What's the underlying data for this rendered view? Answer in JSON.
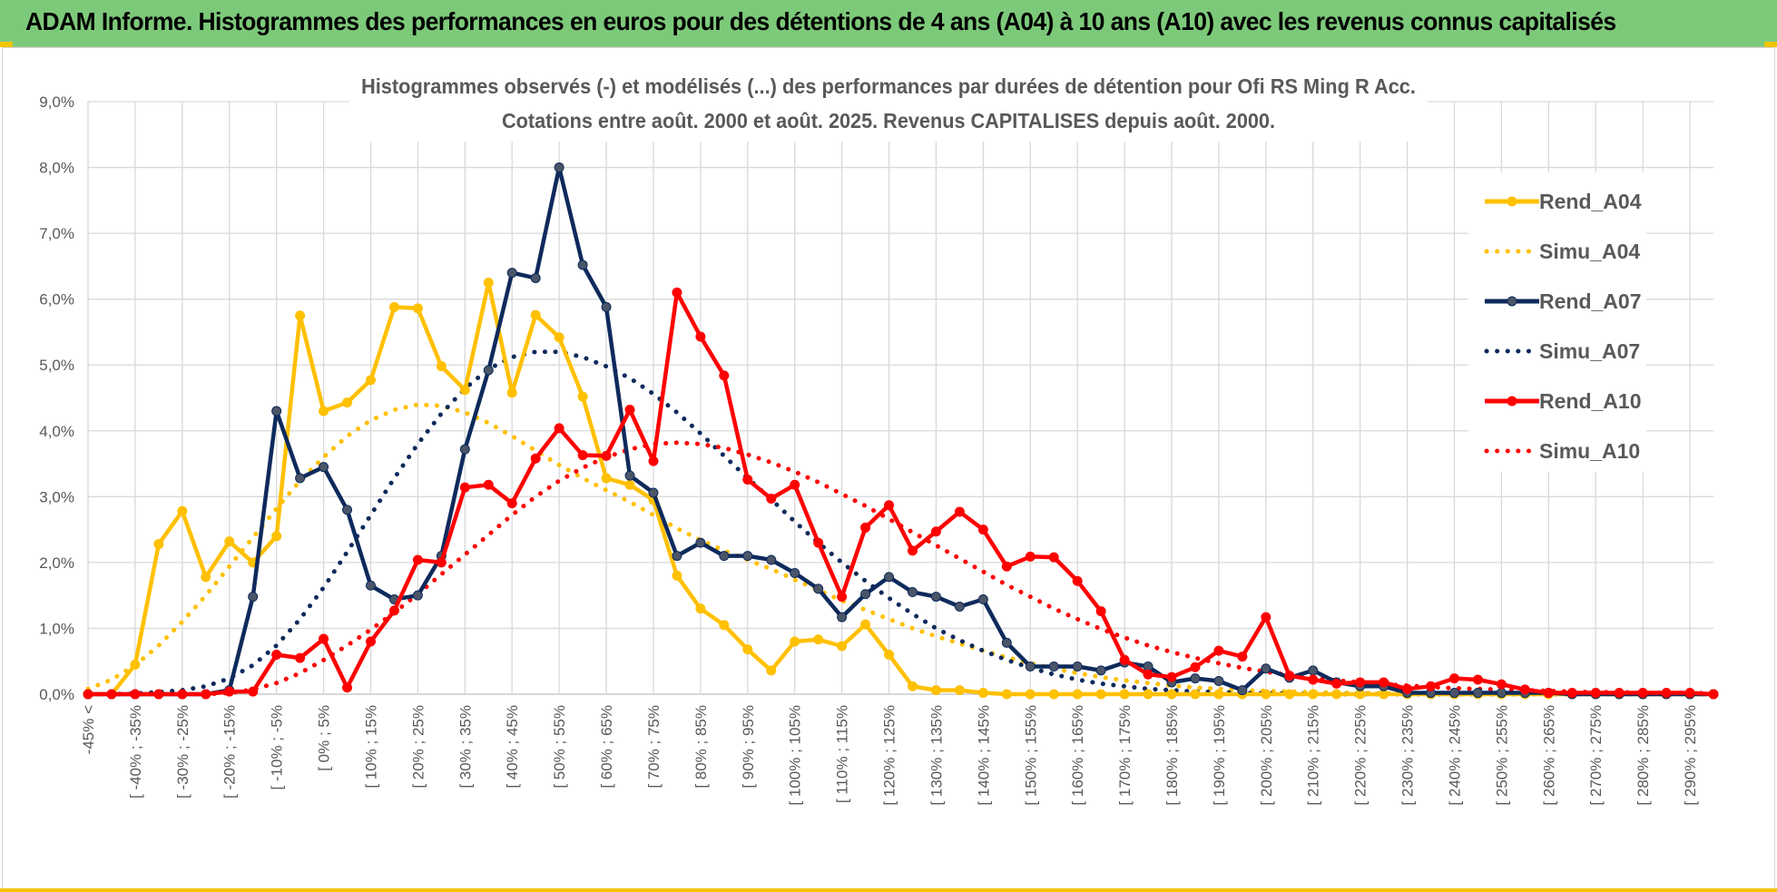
{
  "header": {
    "title": "ADAM Informe. Histogrammes des performances en euros pour des détentions de 4 ans (A04) à 10 ans (A10) avec les revenus connus capitalisés"
  },
  "chart_data": {
    "type": "line",
    "title": "Histogrammes observés (-) et modélisés (...) des performances par durées de détention pour Ofi RS Ming R Acc.",
    "subtitle": "Cotations entre août. 2000 et août. 2025. Revenus CAPITALISES depuis août. 2000.",
    "ylim": [
      0,
      9
    ],
    "y_ticks": [
      "0,0%",
      "1,0%",
      "2,0%",
      "3,0%",
      "4,0%",
      "5,0%",
      "6,0%",
      "7,0%",
      "8,0%",
      "9,0%"
    ],
    "grid": true,
    "legend_position": "right",
    "categories": [
      "-45% <",
      "",
      "[ -40% ; -35%",
      "",
      "[ -30% ; -25%",
      "",
      "[ -20% ; -15%",
      "",
      "[ -10% ; -5%",
      "",
      "[ 0% ; 5%",
      "",
      "[ 10% ; 15%",
      "",
      "[ 20% ; 25%",
      "",
      "[ 30% ; 35%",
      "",
      "[ 40% ; 45%",
      "",
      "[ 50% ; 55%",
      "",
      "[ 60% ; 65%",
      "",
      "[ 70% ; 75%",
      "",
      "[ 80% ; 85%",
      "",
      "[ 90% ; 95%",
      "",
      "[ 100% ; 105%",
      "",
      "[ 110% ; 115%",
      "",
      "[ 120% ; 125%",
      "",
      "[ 130% ; 135%",
      "",
      "[ 140% ; 145%",
      "",
      "[ 150% ; 155%",
      "",
      "[ 160% ; 165%",
      "",
      "[ 170% ; 175%",
      "",
      "[ 180% ; 185%",
      "",
      "[ 190% ; 195%",
      "",
      "[ 200% ; 205%",
      "",
      "[ 210% ; 215%",
      "",
      "[ 220% ; 225%",
      "",
      "[ 230% ; 235%",
      "",
      "[ 240% ; 245%",
      "",
      "[ 250% ; 255%",
      "",
      "[ 260% ; 265%",
      "",
      "[ 270% ; 275%",
      "",
      "[ 280% ; 285%",
      "",
      "[ 290% ; 295%",
      ""
    ],
    "series": [
      {
        "name": "Rend_A04",
        "color": "#ffc000",
        "style": "solid",
        "values": [
          0,
          0,
          0.45,
          2.28,
          2.78,
          1.78,
          2.32,
          2.0,
          2.4,
          5.75,
          4.3,
          4.43,
          4.77,
          5.88,
          5.86,
          4.98,
          4.62,
          6.25,
          4.58,
          5.76,
          5.42,
          4.52,
          3.28,
          3.18,
          2.95,
          1.8,
          1.3,
          1.05,
          0.68,
          0.36,
          0.8,
          0.83,
          0.73,
          1.06,
          0.6,
          0.12,
          0.06,
          0.06,
          0.02,
          0,
          0,
          0,
          0,
          0,
          0,
          0,
          0,
          0,
          0,
          0,
          0,
          0,
          0,
          0,
          0,
          0,
          0,
          0,
          0,
          0,
          0,
          0,
          0,
          0,
          0,
          0,
          0,
          0,
          0,
          0
        ]
      },
      {
        "name": "Simu_A04",
        "color": "#ffc000",
        "style": "dotted",
        "values": [
          0.08,
          0.22,
          0.44,
          0.74,
          1.1,
          1.5,
          1.94,
          2.38,
          2.82,
          3.24,
          3.6,
          3.92,
          4.16,
          4.32,
          4.4,
          4.38,
          4.28,
          4.12,
          3.92,
          3.7,
          3.48,
          3.28,
          3.1,
          2.92,
          2.72,
          2.52,
          2.34,
          2.18,
          2.04,
          1.9,
          1.74,
          1.58,
          1.42,
          1.28,
          1.14,
          1.0,
          0.88,
          0.77,
          0.66,
          0.56,
          0.47,
          0.39,
          0.32,
          0.26,
          0.21,
          0.17,
          0.13,
          0.1,
          0.08,
          0.06,
          0.05,
          0.04,
          0.03,
          0.02,
          0.02,
          0.01,
          0.01,
          0.01,
          0,
          0,
          0,
          0,
          0,
          0,
          0,
          0,
          0,
          0,
          0,
          0
        ]
      },
      {
        "name": "Rend_A07",
        "color": "#0e2a5c",
        "style": "solid",
        "values": [
          0,
          0,
          0,
          0,
          0,
          0,
          0.06,
          1.48,
          4.3,
          3.28,
          3.45,
          2.8,
          1.65,
          1.44,
          1.5,
          2.1,
          3.72,
          4.92,
          6.4,
          6.32,
          8.0,
          6.52,
          5.88,
          3.32,
          3.06,
          2.1,
          2.3,
          2.1,
          2.1,
          2.04,
          1.84,
          1.6,
          1.17,
          1.52,
          1.78,
          1.55,
          1.48,
          1.33,
          1.44,
          0.78,
          0.42,
          0.42,
          0.42,
          0.36,
          0.48,
          0.42,
          0.18,
          0.24,
          0.2,
          0.06,
          0.39,
          0.25,
          0.36,
          0.18,
          0.12,
          0.12,
          0.02,
          0.02,
          0.02,
          0.02,
          0.02,
          0.02,
          0.02,
          0,
          0,
          0,
          0,
          0,
          0,
          0
        ]
      },
      {
        "name": "Simu_A07",
        "color": "#0e2a5c",
        "style": "dotted",
        "values": [
          0,
          0,
          0.01,
          0.03,
          0.06,
          0.12,
          0.24,
          0.44,
          0.74,
          1.14,
          1.62,
          2.16,
          2.72,
          3.28,
          3.8,
          4.26,
          4.64,
          4.94,
          5.12,
          5.2,
          5.2,
          5.12,
          4.98,
          4.8,
          4.56,
          4.28,
          3.96,
          3.62,
          3.28,
          2.96,
          2.62,
          2.3,
          2.0,
          1.72,
          1.46,
          1.22,
          1.0,
          0.82,
          0.66,
          0.52,
          0.4,
          0.3,
          0.22,
          0.16,
          0.12,
          0.08,
          0.06,
          0.04,
          0.03,
          0.02,
          0.01,
          0.01,
          0,
          0,
          0,
          0,
          0,
          0,
          0,
          0,
          0,
          0,
          0,
          0,
          0,
          0,
          0,
          0,
          0,
          0
        ]
      },
      {
        "name": "Rend_A10",
        "color": "#ff0000",
        "style": "solid",
        "values": [
          0,
          0,
          0,
          0,
          0,
          0,
          0.04,
          0.04,
          0.6,
          0.55,
          0.84,
          0.1,
          0.8,
          1.27,
          2.04,
          2.0,
          3.14,
          3.18,
          2.9,
          3.58,
          4.04,
          3.63,
          3.62,
          4.32,
          3.54,
          6.1,
          5.43,
          4.84,
          3.26,
          2.97,
          3.18,
          2.3,
          1.48,
          2.53,
          2.87,
          2.18,
          2.47,
          2.77,
          2.5,
          1.94,
          2.09,
          2.08,
          1.72,
          1.26,
          0.52,
          0.3,
          0.26,
          0.41,
          0.66,
          0.57,
          1.17,
          0.28,
          0.22,
          0.16,
          0.18,
          0.18,
          0.08,
          0.12,
          0.24,
          0.22,
          0.15,
          0.07,
          0.02,
          0.02,
          0.02,
          0.02,
          0.02,
          0.02,
          0.02,
          0
        ]
      },
      {
        "name": "Simu_A10",
        "color": "#ff0000",
        "style": "dotted",
        "values": [
          0,
          0,
          0,
          0,
          0,
          0,
          0.02,
          0.07,
          0.17,
          0.32,
          0.52,
          0.74,
          0.98,
          1.24,
          1.52,
          1.82,
          2.12,
          2.42,
          2.72,
          3.0,
          3.24,
          3.44,
          3.6,
          3.72,
          3.8,
          3.82,
          3.8,
          3.74,
          3.64,
          3.52,
          3.38,
          3.22,
          3.04,
          2.86,
          2.66,
          2.46,
          2.26,
          2.06,
          1.86,
          1.66,
          1.48,
          1.3,
          1.14,
          0.99,
          0.86,
          0.74,
          0.64,
          0.55,
          0.47,
          0.4,
          0.34,
          0.29,
          0.25,
          0.21,
          0.18,
          0.15,
          0.13,
          0.11,
          0.09,
          0.08,
          0.07,
          0.06,
          0.05,
          0.04,
          0.03,
          0.03,
          0.02,
          0.02,
          0.02,
          0.01
        ]
      }
    ]
  }
}
